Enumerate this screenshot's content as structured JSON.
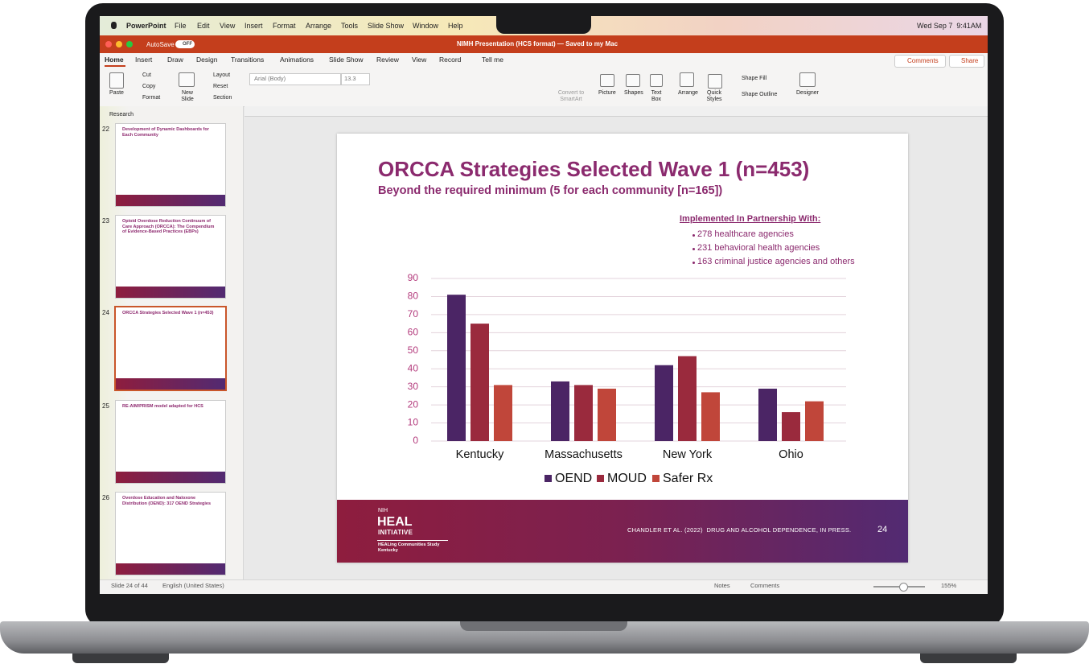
{
  "menu_bar": {
    "app": "PowerPoint",
    "items": [
      "File",
      "Edit",
      "View",
      "Insert",
      "Format",
      "Arrange",
      "Tools",
      "Slide Show",
      "Window",
      "Help"
    ],
    "clock": "Wed Sep 7  9:41AM"
  },
  "title_bar": {
    "autosave": "AutoSave",
    "autosave_state": "OFF",
    "document": "NIMH Presentation (HCS format) — Saved to my Mac"
  },
  "tabs": {
    "items": [
      "Home",
      "Insert",
      "Draw",
      "Design",
      "Transitions",
      "Animations",
      "Slide Show",
      "Review",
      "View",
      "Record"
    ],
    "tell_me": "Tell me",
    "comments": "Comments",
    "share": "Share"
  },
  "ribbon": {
    "paste": "Paste",
    "cut": "Cut",
    "copy": "Copy",
    "format": "Format",
    "new_slide": "New Slide",
    "layout": "Layout",
    "reset": "Reset",
    "section": "Section",
    "font": "Arial (Body)",
    "font_size": 13.3,
    "convert": "Convert to SmartArt",
    "picture": "Picture",
    "shapes": "Shapes",
    "text_box": "Text Box",
    "arrange": "Arrange",
    "quick_styles": "Quick Styles",
    "shape_fill": "Shape Fill",
    "shape_outline": "Shape Outline",
    "designer": "Designer"
  },
  "sidebar": {
    "section": "Research",
    "slides": [
      {
        "number": 22,
        "title": "Development of Dynamic Dashboards for Each Community"
      },
      {
        "number": 23,
        "title": "Opioid Overdose Reduction Continuum of Care Approach (ORCCA): The Compendium of Evidence-Based Practices (EBPs)"
      },
      {
        "number": 24,
        "title": "ORCCA Strategies Selected Wave 1 (n=453)"
      },
      {
        "number": 25,
        "title": "RE-AIM/PRISM model adapted for HCS"
      },
      {
        "number": 26,
        "title": "Overdose Education and Naloxone Distribution (OEND): 317 OEND Strategies"
      }
    ]
  },
  "slide": {
    "title": "ORCCA Strategies Selected Wave 1 (n=453)",
    "subtitle": "Beyond the required minimum (5 for each community [n=165])",
    "partners_heading": "Implemented In Partnership With:",
    "partners": [
      "278 healthcare agencies",
      "231 behavioral health agencies",
      "163 criminal justice agencies and others"
    ],
    "footer": {
      "nih": "NIH",
      "heal": "HEAL",
      "initiative": "INITIATIVE",
      "study": "HEALing Communities Study",
      "state": "Kentucky",
      "citation": "CHANDLER ET AL. (2022)  DRUG AND ALCOHOL DEPENDENCE, IN PRESS.",
      "page": 24
    }
  },
  "chart_data": {
    "type": "bar",
    "categories": [
      "Kentucky",
      "Massachusetts",
      "New York",
      "Ohio"
    ],
    "series": [
      {
        "name": "OEND",
        "color": "#4b2565",
        "values": [
          81,
          33,
          42,
          29
        ]
      },
      {
        "name": "MOUD",
        "color": "#9a2a3d",
        "values": [
          65,
          31,
          47,
          16
        ]
      },
      {
        "name": "Safer Rx",
        "color": "#c0463a",
        "values": [
          31,
          29,
          27,
          22
        ]
      }
    ],
    "ylim": [
      0,
      90
    ],
    "yticks": [
      0,
      10,
      20,
      30,
      40,
      50,
      60,
      70,
      80,
      90
    ],
    "grid": true,
    "legend": "bottom"
  },
  "status_bar": {
    "slide": "Slide 24 of 44",
    "language": "English (United States)",
    "notes": "Notes",
    "comments": "Comments",
    "zoom": "155%"
  }
}
